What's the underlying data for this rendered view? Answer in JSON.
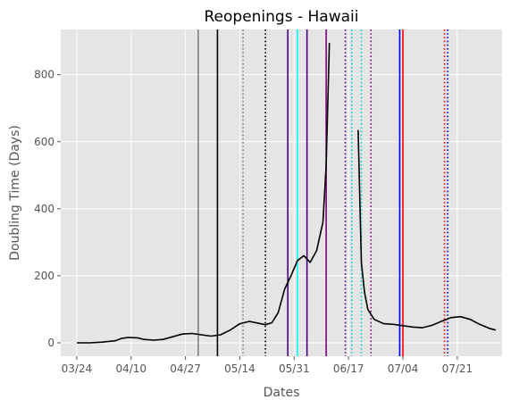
{
  "chart_data": {
    "type": "line",
    "title": "Reopenings - Hawaii",
    "xlabel": "Dates",
    "ylabel": "Doubling Time (Days)",
    "year": 2020,
    "xlim": [
      "2020-03-19",
      "2020-08-04"
    ],
    "ylim": [
      -40,
      935
    ],
    "grid": true,
    "x_ticks": [
      {
        "date": "2020-03-24",
        "label": "03/24"
      },
      {
        "date": "2020-04-10",
        "label": "04/10"
      },
      {
        "date": "2020-04-27",
        "label": "04/27"
      },
      {
        "date": "2020-05-14",
        "label": "05/14"
      },
      {
        "date": "2020-05-31",
        "label": "05/31"
      },
      {
        "date": "2020-06-17",
        "label": "06/17"
      },
      {
        "date": "2020-07-04",
        "label": "07/04"
      },
      {
        "date": "2020-07-21",
        "label": "07/21"
      }
    ],
    "y_ticks": [
      0,
      200,
      400,
      600,
      800
    ],
    "series": [
      {
        "color": "#000000",
        "segments": [
          [
            [
              "2020-03-24",
              0
            ],
            [
              "2020-03-28",
              0
            ],
            [
              "2020-04-01",
              2
            ],
            [
              "2020-04-05",
              6
            ],
            [
              "2020-04-07",
              13
            ],
            [
              "2020-04-09",
              16
            ],
            [
              "2020-04-12",
              15
            ],
            [
              "2020-04-14",
              10
            ],
            [
              "2020-04-17",
              8
            ],
            [
              "2020-04-20",
              10
            ],
            [
              "2020-04-23",
              18
            ],
            [
              "2020-04-26",
              26
            ],
            [
              "2020-04-29",
              28
            ],
            [
              "2020-05-02",
              24
            ],
            [
              "2020-05-05",
              20
            ],
            [
              "2020-05-08",
              24
            ],
            [
              "2020-05-11",
              38
            ],
            [
              "2020-05-14",
              57
            ],
            [
              "2020-05-17",
              64
            ],
            [
              "2020-05-20",
              58
            ],
            [
              "2020-05-22",
              54
            ],
            [
              "2020-05-24",
              60
            ],
            [
              "2020-05-26",
              90
            ],
            [
              "2020-05-28",
              160
            ],
            [
              "2020-05-30",
              200
            ],
            [
              "2020-06-01",
              245
            ],
            [
              "2020-06-03",
              260
            ],
            [
              "2020-06-05",
              240
            ],
            [
              "2020-06-07",
              275
            ],
            [
              "2020-06-09",
              360
            ],
            [
              "2020-06-10",
              530
            ],
            [
              "2020-06-11",
              895
            ]
          ],
          [
            [
              "2020-06-20",
              635
            ],
            [
              "2020-06-21",
              240
            ],
            [
              "2020-06-22",
              150
            ],
            [
              "2020-06-23",
              100
            ],
            [
              "2020-06-25",
              70
            ],
            [
              "2020-06-28",
              57
            ],
            [
              "2020-07-01",
              55
            ],
            [
              "2020-07-04",
              51
            ],
            [
              "2020-07-07",
              47
            ],
            [
              "2020-07-10",
              45
            ],
            [
              "2020-07-13",
              52
            ],
            [
              "2020-07-16",
              64
            ],
            [
              "2020-07-19",
              75
            ],
            [
              "2020-07-22",
              78
            ],
            [
              "2020-07-25",
              70
            ],
            [
              "2020-07-28",
              55
            ],
            [
              "2020-07-31",
              43
            ],
            [
              "2020-08-02",
              38
            ]
          ]
        ]
      }
    ],
    "vlines": [
      {
        "date": "2020-05-01",
        "color": "#808080",
        "style": "solid"
      },
      {
        "date": "2020-05-07",
        "color": "#000000",
        "style": "solid"
      },
      {
        "date": "2020-05-15",
        "color": "#808080",
        "style": "dotted"
      },
      {
        "date": "2020-05-22",
        "color": "#000000",
        "style": "dotted"
      },
      {
        "date": "2020-05-29",
        "color": "#4b0082",
        "style": "solid"
      },
      {
        "date": "2020-06-01",
        "color": "#00ffff",
        "style": "solid"
      },
      {
        "date": "2020-06-04",
        "color": "#4b0082",
        "style": "solid"
      },
      {
        "date": "2020-06-10",
        "color": "#800080",
        "style": "solid"
      },
      {
        "date": "2020-06-16",
        "color": "#4b0082",
        "style": "dotted"
      },
      {
        "date": "2020-06-18",
        "color": "#00cccc",
        "style": "dotted"
      },
      {
        "date": "2020-06-21",
        "color": "#00cccc",
        "style": "dotted"
      },
      {
        "date": "2020-06-24",
        "color": "#800080",
        "style": "dotted"
      },
      {
        "date": "2020-07-03",
        "color": "#0000ff",
        "style": "solid"
      },
      {
        "date": "2020-07-04",
        "color": "#ff0000",
        "style": "solid"
      },
      {
        "date": "2020-07-17",
        "color": "#ff0000",
        "style": "dotted"
      },
      {
        "date": "2020-07-18",
        "color": "#0000cd",
        "style": "dotted"
      }
    ]
  }
}
